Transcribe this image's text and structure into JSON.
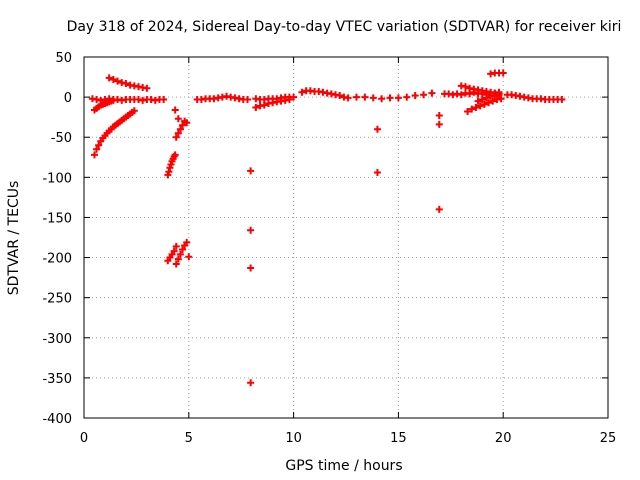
{
  "chart_data": {
    "type": "scatter",
    "title": "Day 318 of 2024, Sidereal Day-to-day VTEC variation (SDTVAR) for receiver kiri",
    "xlabel": "GPS time / hours",
    "ylabel": "SDTVAR / TECUs",
    "xlim": [
      0,
      25
    ],
    "ylim": [
      -400,
      50
    ],
    "xticks": [
      0,
      5,
      10,
      15,
      20,
      25
    ],
    "yticks": [
      50,
      0,
      -50,
      -100,
      -150,
      -200,
      -250,
      -300,
      -350,
      -400
    ],
    "grid": true,
    "marker": "+",
    "color": "#ff0000",
    "series": [
      {
        "name": "band-0h-3.9h",
        "x": [
          0.4,
          0.6,
          0.8,
          1.0,
          1.2,
          1.4,
          1.6,
          1.8,
          2.0,
          2.2,
          2.4,
          2.6,
          2.8,
          3.0,
          3.2,
          3.4,
          3.6,
          3.8
        ],
        "y": [
          -2,
          -3,
          -4,
          -3,
          -2,
          -3,
          -3,
          -4,
          -3,
          -3,
          -3,
          -3,
          -4,
          -3,
          -3,
          -4,
          -3,
          -3
        ]
      },
      {
        "name": "descending-1.2h-3h",
        "x": [
          1.2,
          1.4,
          1.6,
          1.8,
          2.0,
          2.2,
          2.4,
          2.6,
          2.8,
          3.0
        ],
        "y": [
          24,
          22,
          20,
          18,
          17,
          15,
          14,
          13,
          12,
          11
        ]
      },
      {
        "name": "rising-0.5h-2.4h",
        "x": [
          0.5,
          0.6,
          0.7,
          0.8,
          0.9,
          1.0,
          1.1,
          1.2,
          1.3,
          1.4,
          1.5,
          1.6,
          1.7,
          1.8,
          1.9,
          2.0,
          2.1,
          2.2,
          2.3,
          2.4
        ],
        "y": [
          -72,
          -65,
          -60,
          -55,
          -51,
          -48,
          -45,
          -42,
          -40,
          -37,
          -35,
          -33,
          -31,
          -29,
          -27,
          -25,
          -23,
          -21,
          -19,
          -17
        ]
      },
      {
        "name": "rising-0.5h-1.4h",
        "x": [
          0.5,
          0.6,
          0.7,
          0.8,
          0.9,
          1.0,
          1.1,
          1.2,
          1.3,
          1.4
        ],
        "y": [
          -16,
          -14,
          -12,
          -10,
          -9,
          -8,
          -7,
          -6,
          -5,
          -4
        ]
      },
      {
        "name": "arc-4.1h",
        "x": [
          4.0,
          4.05,
          4.1,
          4.15,
          4.2,
          4.25,
          4.3,
          4.35
        ],
        "y": [
          -97,
          -93,
          -88,
          -84,
          -80,
          -77,
          -74,
          -72
        ]
      },
      {
        "name": "arc-4.4h-4.8h",
        "x": [
          4.4,
          4.5,
          4.6,
          4.7,
          4.8
        ],
        "y": [
          -50,
          -45,
          -40,
          -35,
          -30
        ]
      },
      {
        "name": "isolated-4.4h",
        "x": [
          4.35,
          4.5,
          4.9
        ],
        "y": [
          -16,
          -27,
          -32
        ]
      },
      {
        "name": "cluster-4.1h-200",
        "x": [
          4.0,
          4.1,
          4.2,
          4.3,
          4.4
        ],
        "y": [
          -204,
          -200,
          -196,
          -192,
          -186
        ]
      },
      {
        "name": "cluster-4.7h-200",
        "x": [
          4.4,
          4.5,
          4.6,
          4.7,
          4.8,
          4.9
        ],
        "y": [
          -208,
          -202,
          -196,
          -190,
          -185,
          -181
        ]
      },
      {
        "name": "isolated-5h",
        "x": [
          5.0
        ],
        "y": [
          -199
        ]
      },
      {
        "name": "band-5h-7.9h",
        "x": [
          5.4,
          5.6,
          5.8,
          6.0,
          6.2,
          6.4,
          6.6,
          6.8,
          7.0,
          7.2,
          7.4,
          7.6,
          7.8
        ],
        "y": [
          -3,
          -3,
          -2,
          -2,
          -2,
          -1,
          0,
          1,
          0,
          -1,
          -2,
          -3,
          -3
        ]
      },
      {
        "name": "band-8.2h-10.0h",
        "x": [
          8.2,
          8.4,
          8.6,
          8.8,
          9.0,
          9.2,
          9.4,
          9.6,
          9.8,
          10.0
        ],
        "y": [
          -2,
          -3,
          -3,
          -2,
          -2,
          -2,
          -1,
          0,
          0,
          0
        ]
      },
      {
        "name": "rising-8.2h-9.8h",
        "x": [
          8.2,
          8.4,
          8.6,
          8.8,
          9.0,
          9.2,
          9.4,
          9.6,
          9.8
        ],
        "y": [
          -13,
          -11,
          -10,
          -8,
          -7,
          -6,
          -5,
          -4,
          -3
        ]
      },
      {
        "name": "isolated-8h",
        "x": [
          7.95,
          7.95,
          7.95,
          7.95
        ],
        "y": [
          -92,
          -166,
          -213,
          -356
        ]
      },
      {
        "name": "bump-10.4h-11.4h",
        "x": [
          10.4,
          10.6,
          10.8,
          11.0,
          11.2,
          11.4,
          11.6,
          11.8,
          12.0
        ],
        "y": [
          6,
          8,
          8,
          7,
          7,
          6,
          5,
          4,
          3
        ]
      },
      {
        "name": "band-12.2h-16.8h",
        "x": [
          12.2,
          12.4,
          12.6,
          13.0,
          13.4,
          13.8,
          14.2,
          14.6,
          15.0,
          15.4,
          15.8,
          16.2,
          16.6
        ],
        "y": [
          2,
          0,
          -1,
          0,
          0,
          -1,
          -2,
          -1,
          -1,
          0,
          2,
          3,
          5
        ]
      },
      {
        "name": "isolated-14h",
        "x": [
          14.0,
          14.0
        ],
        "y": [
          -40,
          -94
        ]
      },
      {
        "name": "isolated-17h",
        "x": [
          16.95,
          16.95,
          16.95
        ],
        "y": [
          -23,
          -34,
          -140
        ]
      },
      {
        "name": "band-17.2h-19.8h",
        "x": [
          17.2,
          17.4,
          17.6,
          17.8,
          18.0,
          18.2,
          18.4,
          18.6,
          18.8,
          19.0,
          19.2,
          19.4,
          19.6,
          19.8
        ],
        "y": [
          4,
          4,
          3,
          4,
          3,
          5,
          4,
          6,
          4,
          5,
          3,
          5,
          5,
          6
        ]
      },
      {
        "name": "descending-18h-19.8h",
        "x": [
          18.0,
          18.2,
          18.4,
          18.6,
          18.8,
          19.0,
          19.2,
          19.4,
          19.6,
          19.8
        ],
        "y": [
          14,
          13,
          11,
          10,
          9,
          8,
          7,
          6,
          5,
          4
        ]
      },
      {
        "name": "rising-18.3h-19.9h",
        "x": [
          18.3,
          18.5,
          18.7,
          18.9,
          19.1,
          19.3,
          19.5,
          19.7,
          19.9
        ],
        "y": [
          -18,
          -15,
          -13,
          -11,
          -9,
          -7,
          -5,
          -3,
          -2
        ]
      },
      {
        "name": "rising-18.8h-19.8h",
        "x": [
          18.8,
          19.0,
          19.2,
          19.4,
          19.6,
          19.8
        ],
        "y": [
          -5,
          -3,
          -1,
          1,
          2,
          3
        ]
      },
      {
        "name": "top-19.4h-20h",
        "x": [
          19.4,
          19.6,
          19.8,
          20.0
        ],
        "y": [
          29,
          30,
          30,
          30
        ]
      },
      {
        "name": "band-20.2h-22.8h",
        "x": [
          20.2,
          20.4,
          20.6,
          20.8,
          21.0,
          21.2,
          21.4,
          21.6,
          21.8,
          22.0,
          22.2,
          22.4,
          22.6,
          22.8
        ],
        "y": [
          3,
          3,
          2,
          1,
          0,
          -1,
          -2,
          -2,
          -2,
          -3,
          -3,
          -3,
          -3,
          -3
        ]
      }
    ]
  }
}
